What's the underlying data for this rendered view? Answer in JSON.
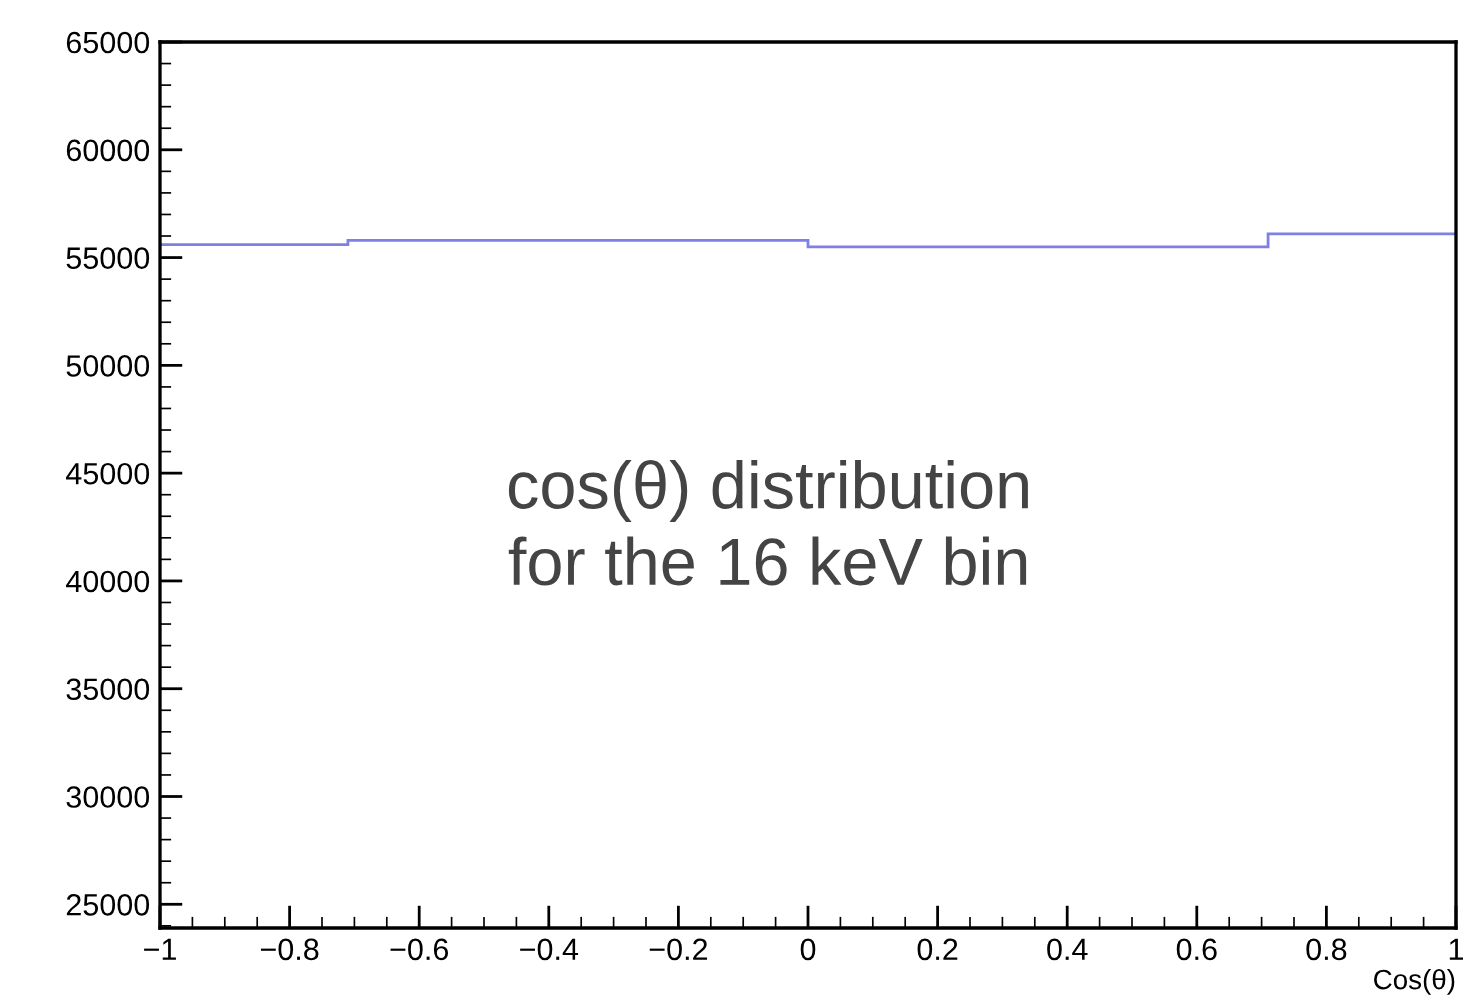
{
  "chart_data": {
    "type": "histogram",
    "bins": [
      -1,
      -0.71,
      0,
      0.71,
      1
    ],
    "values": [
      55600,
      55800,
      55500,
      56100
    ],
    "color": "#7f7fe6",
    "xlabel": "Cos(θ)",
    "xlim": [
      -1,
      1
    ],
    "xticks": [
      {
        "value": -1,
        "label": "−1"
      },
      {
        "value": -0.8,
        "label": "−0.8"
      },
      {
        "value": -0.6,
        "label": "−0.6"
      },
      {
        "value": -0.4,
        "label": "−0.4"
      },
      {
        "value": -0.2,
        "label": "−0.2"
      },
      0,
      0.2,
      0.4,
      0.6,
      0.8,
      1
    ],
    "ylim": [
      23900,
      65000
    ],
    "yticks": [
      25000,
      30000,
      35000,
      40000,
      45000,
      50000,
      55000,
      60000,
      65000
    ],
    "grid": false,
    "annotations": [
      "cos(θ) distribution\nfor the 16 keV bin"
    ]
  }
}
